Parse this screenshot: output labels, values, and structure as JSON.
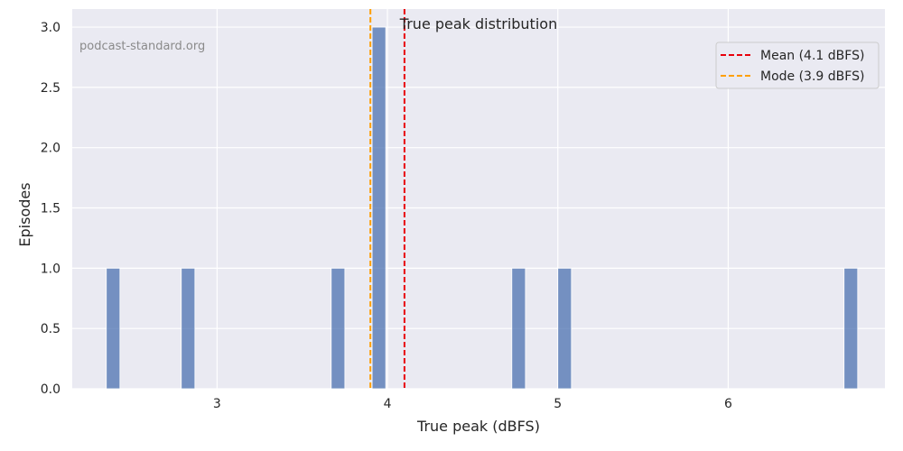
{
  "chart_data": {
    "type": "bar",
    "title": "True peak distribution",
    "xlabel": "True peak (dBFS)",
    "ylabel": "Episodes",
    "watermark": "podcast-standard.org",
    "xlim": [
      2.15,
      6.92
    ],
    "ylim": [
      0,
      3.15
    ],
    "xticks": [
      3,
      4,
      5,
      6
    ],
    "yticks": [
      0.0,
      0.5,
      1.0,
      1.5,
      2.0,
      2.5,
      3.0
    ],
    "xtick_labels": [
      "3",
      "4",
      "5",
      "6"
    ],
    "ytick_labels": [
      "0.0",
      "0.5",
      "1.0",
      "1.5",
      "2.0",
      "2.5",
      "3.0"
    ],
    "bin_width": 0.08,
    "bins": [
      {
        "x": 2.39,
        "count": 1
      },
      {
        "x": 2.83,
        "count": 1
      },
      {
        "x": 3.71,
        "count": 1
      },
      {
        "x": 3.95,
        "count": 3
      },
      {
        "x": 4.77,
        "count": 1
      },
      {
        "x": 5.04,
        "count": 1
      },
      {
        "x": 6.72,
        "count": 1
      }
    ],
    "bar_color": "#4c72b0",
    "reference_lines": [
      {
        "name": "mean",
        "value": 4.1,
        "label": "Mean (4.1 dBFS)",
        "color": "#e8000b"
      },
      {
        "name": "mode",
        "value": 3.9,
        "label": "Mode (3.9 dBFS)",
        "color": "#ff9f00"
      }
    ],
    "legend_position": "top-right",
    "grid": true,
    "background": "#eaeaf2"
  }
}
